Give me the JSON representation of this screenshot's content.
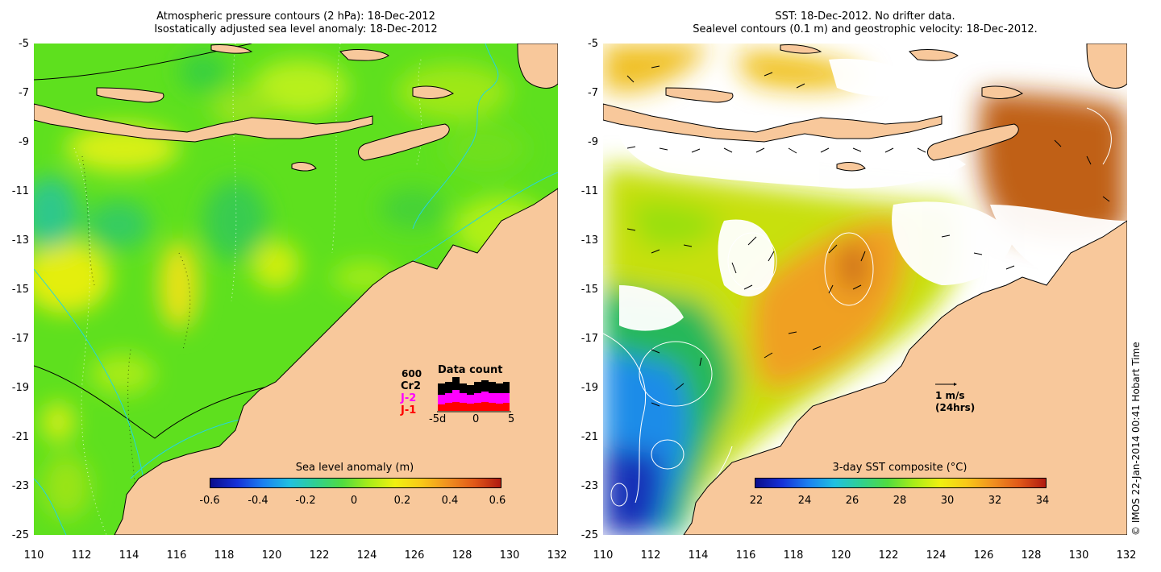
{
  "left_panel": {
    "title_line1": "Atmospheric pressure contours (2 hPa): 18-Dec-2012",
    "title_line2": "Isostatically adjusted sea level anomaly: 18-Dec-2012",
    "colorbar_title": "Sea level anomaly (m)",
    "colorbar_ticks": [
      "-0.6",
      "-0.4",
      "-0.2",
      "0",
      "0.2",
      "0.4",
      "0.6"
    ],
    "data_count": {
      "title": "Data count",
      "max_label": "600",
      "missions": [
        "Cr2",
        "J-2",
        "J-1"
      ],
      "mission_colors": [
        "#000000",
        "#ff00ff",
        "#ff0000"
      ],
      "axis_labels": [
        "-5d",
        "0",
        "5"
      ]
    }
  },
  "right_panel": {
    "title_line1": "SST: 18-Dec-2012. No drifter data.",
    "title_line2": "Sealevel contours (0.1 m) and geostrophic velocity: 18-Dec-2012.",
    "colorbar_title": "3-day SST composite (°C)",
    "colorbar_ticks": [
      "22",
      "24",
      "26",
      "28",
      "30",
      "32",
      "34"
    ],
    "vector_scale_label": "1 m/s",
    "vector_scale_sub": "(24hrs)"
  },
  "axes": {
    "x_ticks": [
      "110",
      "112",
      "114",
      "116",
      "118",
      "120",
      "122",
      "124",
      "126",
      "128",
      "130",
      "132"
    ],
    "y_ticks": [
      "-5",
      "-7",
      "-9",
      "-11",
      "-13",
      "-15",
      "-17",
      "-19",
      "-21",
      "-23",
      "-25"
    ]
  },
  "credit": "© IMOS 22-Jan-2014 00:41 Hobart Time",
  "colors": {
    "land": "#f8c89b",
    "ocean_base": "#5de21c",
    "sst_white": "#ffffff",
    "coast": "#000000"
  }
}
